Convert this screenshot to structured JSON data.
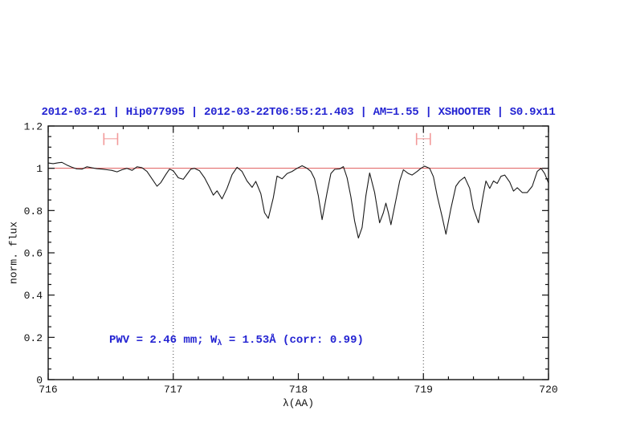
{
  "figure": {
    "title": "2012-03-21 | Hip077995 | 2012-03-22T06:55:21.403 | AM=1.55 | XSHOOTER | S0.9x11",
    "title_color": "#2424d2",
    "annotation": {
      "prefix": "PWV = 2.46 mm; W",
      "sub": "λ",
      "suffix": " = 1.53Å (corr: 0.99)",
      "color": "#2424d2"
    }
  },
  "chart_data": {
    "type": "line",
    "title": "2012-03-21 | Hip077995 | 2012-03-22T06:55:21.403 | AM=1.55 | XSHOOTER | S0.9x11",
    "xlabel": "λ(AA)",
    "ylabel": "norm. flux",
    "xlim": [
      716,
      720
    ],
    "ylim": [
      0,
      1.2
    ],
    "x_tick_values": [
      716,
      717,
      718,
      719,
      720
    ],
    "x_tick_labels": [
      "716",
      "717",
      "718",
      "719",
      "720"
    ],
    "x_minor_step": 0.2,
    "y_tick_values": [
      0,
      0.2,
      0.4,
      0.6,
      0.8,
      1,
      1.2
    ],
    "y_tick_labels": [
      "0",
      "0.2",
      "0.4",
      "0.6",
      "0.8",
      "1",
      "1.2"
    ],
    "y_minor_step": 0.05,
    "grid": "off",
    "legend": "none",
    "dotted_vlines": {
      "x": [
        717.0,
        719.0
      ],
      "color": "#444444"
    },
    "reference_line": {
      "y": 1.0,
      "color": "#e05c5c"
    },
    "interval_markers": {
      "color": "#f29a9a",
      "y": 1.14,
      "items": [
        {
          "x_center": 716.5,
          "x_halfwidth": 0.055
        },
        {
          "x_center": 719.0,
          "x_halfwidth": 0.055
        }
      ]
    },
    "series": [
      {
        "name": "telluric-spectrum",
        "color": "#1a1a1a",
        "x": [
          716.0,
          716.04,
          716.08,
          716.11,
          716.15,
          716.19,
          716.23,
          716.27,
          716.31,
          716.35,
          716.39,
          716.43,
          716.47,
          716.51,
          716.55,
          716.59,
          716.63,
          716.67,
          716.71,
          716.75,
          716.79,
          716.83,
          716.87,
          716.9,
          716.94,
          716.97,
          717.0,
          717.04,
          717.08,
          717.11,
          717.14,
          717.17,
          717.21,
          717.25,
          717.29,
          717.32,
          717.35,
          717.39,
          717.43,
          717.47,
          717.51,
          717.55,
          717.59,
          717.63,
          717.66,
          717.7,
          717.73,
          717.76,
          717.8,
          717.83,
          717.87,
          717.91,
          717.95,
          717.99,
          718.03,
          718.07,
          718.1,
          718.13,
          718.16,
          718.19,
          718.23,
          718.26,
          718.29,
          718.33,
          718.36,
          718.39,
          718.42,
          718.45,
          718.48,
          718.51,
          718.54,
          718.57,
          718.61,
          718.65,
          718.68,
          718.7,
          718.72,
          718.74,
          718.78,
          718.81,
          718.84,
          718.88,
          718.91,
          718.95,
          718.98,
          719.01,
          719.05,
          719.08,
          719.11,
          719.15,
          719.18,
          719.22,
          719.26,
          719.29,
          719.33,
          719.37,
          719.4,
          719.44,
          719.48,
          719.5,
          719.53,
          719.56,
          719.59,
          719.62,
          719.65,
          719.69,
          719.72,
          719.75,
          719.79,
          719.83,
          719.87,
          719.91,
          719.94,
          719.97,
          720.0
        ],
        "y": [
          1.025,
          1.022,
          1.026,
          1.028,
          1.015,
          1.005,
          0.997,
          0.996,
          1.007,
          1.002,
          0.998,
          0.996,
          0.993,
          0.99,
          0.983,
          0.993,
          1.0,
          0.99,
          1.007,
          1.003,
          0.985,
          0.95,
          0.915,
          0.932,
          0.97,
          0.996,
          0.988,
          0.955,
          0.948,
          0.972,
          0.996,
          1.0,
          0.988,
          0.955,
          0.91,
          0.873,
          0.893,
          0.855,
          0.905,
          0.97,
          1.005,
          0.985,
          0.94,
          0.91,
          0.938,
          0.88,
          0.79,
          0.763,
          0.86,
          0.963,
          0.95,
          0.975,
          0.985,
          1.0,
          1.012,
          1.0,
          0.985,
          0.95,
          0.87,
          0.757,
          0.885,
          0.975,
          0.995,
          0.997,
          1.008,
          0.955,
          0.865,
          0.75,
          0.67,
          0.72,
          0.87,
          0.978,
          0.885,
          0.742,
          0.79,
          0.835,
          0.79,
          0.733,
          0.85,
          0.94,
          0.993,
          0.975,
          0.968,
          0.985,
          1.0,
          1.01,
          1.0,
          0.96,
          0.87,
          0.77,
          0.688,
          0.81,
          0.915,
          0.94,
          0.958,
          0.905,
          0.81,
          0.742,
          0.88,
          0.94,
          0.905,
          0.94,
          0.928,
          0.962,
          0.968,
          0.935,
          0.892,
          0.908,
          0.885,
          0.885,
          0.915,
          0.985,
          1.0,
          0.975,
          0.93
        ]
      }
    ],
    "annotation_text": "PWV = 2.46 mm; Wλ = 1.53Å (corr: 0.99)"
  }
}
